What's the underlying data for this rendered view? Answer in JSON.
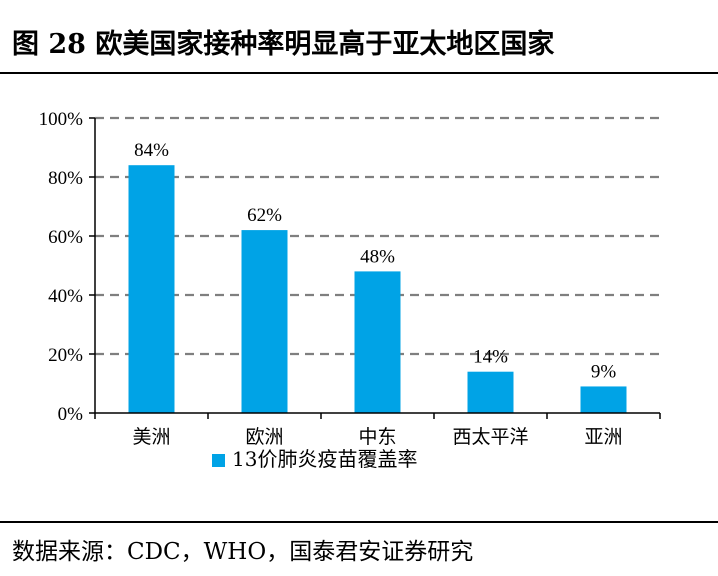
{
  "header": {
    "title": "图 28 欧美国家接种率明显高于亚太地区国家"
  },
  "footer": {
    "source": "数据来源：CDC，WHO，国泰君安证券研究"
  },
  "chart_data": {
    "type": "bar",
    "categories": [
      "美洲",
      "欧洲",
      "中东",
      "西太平洋",
      "亚洲"
    ],
    "series": [
      {
        "name": "13价肺炎疫苗覆盖率",
        "values": [
          84,
          62,
          48,
          14,
          9
        ]
      }
    ],
    "data_labels": [
      "84%",
      "62%",
      "48%",
      "14%",
      "9%"
    ],
    "y_ticks": [
      "0%",
      "20%",
      "40%",
      "60%",
      "80%",
      "100%"
    ],
    "ylim": [
      0,
      100
    ],
    "unit": "%",
    "grid": true,
    "legend_position": "bottom",
    "colors": {
      "bar": "#00a3e6",
      "grid": "#7f7f7f",
      "axis": "#000000"
    }
  }
}
